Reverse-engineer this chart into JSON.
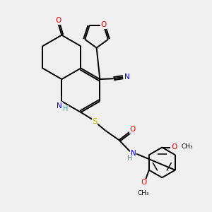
{
  "bg_color": "#f0f0f0",
  "bond_color": "#000000",
  "atom_colors": {
    "O": "#ff0000",
    "N": "#0000ff",
    "S": "#b8b800",
    "C": "#000000",
    "H": "#4a9090"
  },
  "bond_lw": 1.4,
  "font_size": 7.5
}
